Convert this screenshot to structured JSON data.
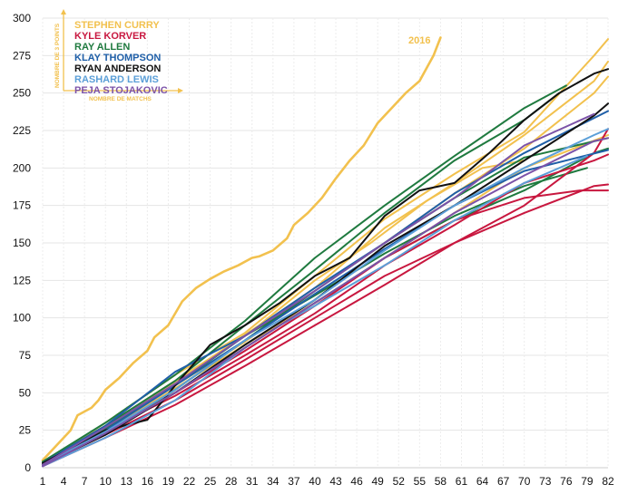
{
  "chart_data": {
    "type": "line",
    "title": "",
    "xlabel": "NOMBRE DE MATCHS",
    "ylabel": "NOMBRE DE 3 POINTS",
    "xlim": [
      1,
      82
    ],
    "ylim": [
      0,
      300
    ],
    "x_ticks": [
      "1",
      "4",
      "7",
      "10",
      "13",
      "16",
      "19",
      "22",
      "25",
      "28",
      "31",
      "34",
      "37",
      "40",
      "43",
      "46",
      "49",
      "52",
      "55",
      "58",
      "61",
      "64",
      "67",
      "70",
      "73",
      "76",
      "79",
      "82"
    ],
    "y_ticks": [
      "0",
      "25",
      "50",
      "75",
      "100",
      "125",
      "150",
      "175",
      "200",
      "225",
      "250",
      "275",
      "300"
    ],
    "legend": {
      "placement": "top-left",
      "entries": [
        {
          "name": "STEPHEN CURRY",
          "color": "#f2c14e"
        },
        {
          "name": "KYLE KORVER",
          "color": "#c8173f"
        },
        {
          "name": "RAY ALLEN",
          "color": "#1f7a3f"
        },
        {
          "name": "KLAY THOMPSON",
          "color": "#1f5fa8"
        },
        {
          "name": "RYAN ANDERSON",
          "color": "#111111"
        },
        {
          "name": "RASHARD LEWIS",
          "color": "#5b9fd8"
        },
        {
          "name": "PEJA STOJAKOVIC",
          "color": "#7b52a8"
        }
      ]
    },
    "annotation": {
      "text": "2016",
      "color": "#f2c14e"
    },
    "series": [
      {
        "name": "STEPHEN CURRY 2016",
        "color": "#f2c14e",
        "width": 2.6,
        "points": [
          [
            1,
            5
          ],
          [
            3,
            15
          ],
          [
            5,
            25
          ],
          [
            6,
            35
          ],
          [
            8,
            40
          ],
          [
            9,
            45
          ],
          [
            10,
            52
          ],
          [
            12,
            60
          ],
          [
            14,
            70
          ],
          [
            16,
            78
          ],
          [
            17,
            87
          ],
          [
            19,
            95
          ],
          [
            21,
            111
          ],
          [
            23,
            120
          ],
          [
            25,
            126
          ],
          [
            27,
            131
          ],
          [
            29,
            135
          ],
          [
            31,
            140
          ],
          [
            32,
            141
          ],
          [
            34,
            145
          ],
          [
            36,
            153
          ],
          [
            37,
            162
          ],
          [
            39,
            170
          ],
          [
            41,
            180
          ],
          [
            43,
            193
          ],
          [
            45,
            205
          ],
          [
            47,
            215
          ],
          [
            49,
            230
          ],
          [
            51,
            240
          ],
          [
            53,
            250
          ],
          [
            55,
            258
          ],
          [
            57,
            275
          ],
          [
            58,
            287
          ]
        ]
      },
      {
        "name": "STEPHEN CURRY",
        "color": "#f2c14e",
        "width": 2,
        "points": [
          [
            1,
            3
          ],
          [
            10,
            30
          ],
          [
            20,
            62
          ],
          [
            30,
            90
          ],
          [
            40,
            128
          ],
          [
            50,
            166
          ],
          [
            60,
            196
          ],
          [
            70,
            224
          ],
          [
            80,
            275
          ],
          [
            82,
            286
          ]
        ]
      },
      {
        "name": "STEPHEN CURRY",
        "color": "#f2c14e",
        "width": 2,
        "points": [
          [
            1,
            4
          ],
          [
            10,
            28
          ],
          [
            20,
            58
          ],
          [
            30,
            88
          ],
          [
            40,
            120
          ],
          [
            50,
            160
          ],
          [
            60,
            190
          ],
          [
            70,
            222
          ],
          [
            80,
            258
          ],
          [
            82,
            271
          ]
        ]
      },
      {
        "name": "STEPHEN CURRY",
        "color": "#f2c14e",
        "width": 2,
        "points": [
          [
            1,
            2
          ],
          [
            10,
            26
          ],
          [
            20,
            55
          ],
          [
            30,
            84
          ],
          [
            40,
            118
          ],
          [
            50,
            150
          ],
          [
            60,
            183
          ],
          [
            70,
            213
          ],
          [
            80,
            250
          ],
          [
            82,
            261
          ]
        ]
      },
      {
        "name": "STEPHEN CURRY",
        "color": "#f2c14e",
        "width": 2,
        "points": [
          [
            1,
            3
          ],
          [
            10,
            25
          ],
          [
            20,
            53
          ],
          [
            30,
            82
          ],
          [
            40,
            110
          ],
          [
            50,
            140
          ],
          [
            60,
            170
          ],
          [
            70,
            200
          ],
          [
            82,
            222
          ]
        ]
      },
      {
        "name": "STEPHEN CURRY",
        "color": "#f2c14e",
        "width": 2,
        "points": [
          [
            1,
            2
          ],
          [
            8,
            20
          ],
          [
            16,
            45
          ],
          [
            24,
            70
          ],
          [
            32,
            95
          ],
          [
            40,
            125
          ],
          [
            48,
            150
          ],
          [
            56,
            178
          ],
          [
            64,
            200
          ],
          [
            70,
            205
          ]
        ]
      },
      {
        "name": "RAY ALLEN",
        "color": "#1f7a3f",
        "width": 2,
        "points": [
          [
            1,
            3
          ],
          [
            10,
            28
          ],
          [
            20,
            58
          ],
          [
            30,
            95
          ],
          [
            40,
            132
          ],
          [
            50,
            170
          ],
          [
            60,
            205
          ],
          [
            70,
            232
          ],
          [
            75,
            250
          ]
        ]
      },
      {
        "name": "RAY ALLEN",
        "color": "#1f7a3f",
        "width": 2,
        "points": [
          [
            1,
            4
          ],
          [
            10,
            30
          ],
          [
            20,
            62
          ],
          [
            30,
            98
          ],
          [
            40,
            140
          ],
          [
            50,
            175
          ],
          [
            60,
            208
          ],
          [
            70,
            240
          ],
          [
            76,
            255
          ]
        ]
      },
      {
        "name": "RAY ALLEN",
        "color": "#1f7a3f",
        "width": 2,
        "points": [
          [
            1,
            2
          ],
          [
            10,
            22
          ],
          [
            20,
            52
          ],
          [
            30,
            85
          ],
          [
            40,
            118
          ],
          [
            50,
            150
          ],
          [
            60,
            180
          ],
          [
            70,
            207
          ],
          [
            82,
            220
          ]
        ]
      },
      {
        "name": "RAY ALLEN",
        "color": "#1f7a3f",
        "width": 2,
        "points": [
          [
            1,
            3
          ],
          [
            10,
            26
          ],
          [
            20,
            55
          ],
          [
            30,
            88
          ],
          [
            40,
            115
          ],
          [
            50,
            143
          ],
          [
            60,
            168
          ],
          [
            70,
            188
          ],
          [
            79,
            200
          ]
        ]
      },
      {
        "name": "RAY ALLEN",
        "color": "#1f7a3f",
        "width": 2,
        "points": [
          [
            1,
            2
          ],
          [
            10,
            24
          ],
          [
            20,
            50
          ],
          [
            30,
            80
          ],
          [
            40,
            110
          ],
          [
            50,
            140
          ],
          [
            60,
            165
          ],
          [
            70,
            185
          ],
          [
            80,
            210
          ],
          [
            82,
            213
          ]
        ]
      },
      {
        "name": "KYLE KORVER",
        "color": "#c8173f",
        "width": 2,
        "points": [
          [
            1,
            2
          ],
          [
            10,
            22
          ],
          [
            20,
            45
          ],
          [
            30,
            72
          ],
          [
            40,
            100
          ],
          [
            50,
            128
          ],
          [
            60,
            150
          ],
          [
            70,
            170
          ],
          [
            80,
            188
          ],
          [
            82,
            189
          ]
        ]
      },
      {
        "name": "KYLE KORVER",
        "color": "#c8173f",
        "width": 2,
        "points": [
          [
            1,
            1
          ],
          [
            10,
            20
          ],
          [
            20,
            42
          ],
          [
            30,
            68
          ],
          [
            40,
            95
          ],
          [
            50,
            122
          ],
          [
            60,
            150
          ],
          [
            70,
            175
          ],
          [
            80,
            210
          ],
          [
            82,
            226
          ]
        ]
      },
      {
        "name": "KYLE KORVER",
        "color": "#c8173f",
        "width": 2,
        "points": [
          [
            1,
            2
          ],
          [
            10,
            25
          ],
          [
            20,
            48
          ],
          [
            30,
            75
          ],
          [
            40,
            103
          ],
          [
            50,
            135
          ],
          [
            60,
            162
          ],
          [
            70,
            190
          ],
          [
            80,
            205
          ],
          [
            82,
            209
          ]
        ]
      },
      {
        "name": "KYLE KORVER",
        "color": "#c8173f",
        "width": 2,
        "points": [
          [
            1,
            1
          ],
          [
            10,
            23
          ],
          [
            20,
            50
          ],
          [
            30,
            78
          ],
          [
            40,
            108
          ],
          [
            50,
            140
          ],
          [
            60,
            165
          ],
          [
            70,
            180
          ],
          [
            78,
            185
          ],
          [
            82,
            185
          ]
        ]
      },
      {
        "name": "KLAY THOMPSON",
        "color": "#1f5fa8",
        "width": 2,
        "points": [
          [
            1,
            3
          ],
          [
            10,
            28
          ],
          [
            20,
            64
          ],
          [
            30,
            88
          ],
          [
            40,
            120
          ],
          [
            50,
            150
          ],
          [
            60,
            183
          ],
          [
            70,
            210
          ],
          [
            82,
            238
          ]
        ]
      },
      {
        "name": "KLAY THOMPSON",
        "color": "#1f5fa8",
        "width": 2,
        "points": [
          [
            1,
            2
          ],
          [
            10,
            25
          ],
          [
            20,
            55
          ],
          [
            30,
            85
          ],
          [
            40,
            116
          ],
          [
            50,
            146
          ],
          [
            60,
            175
          ],
          [
            70,
            198
          ],
          [
            82,
            212
          ]
        ]
      },
      {
        "name": "RYAN ANDERSON",
        "color": "#111111",
        "width": 2,
        "points": [
          [
            1,
            3
          ],
          [
            10,
            25
          ],
          [
            16,
            32
          ],
          [
            20,
            55
          ],
          [
            25,
            82
          ],
          [
            30,
            95
          ],
          [
            35,
            110
          ],
          [
            40,
            128
          ],
          [
            45,
            140
          ],
          [
            50,
            168
          ],
          [
            55,
            185
          ],
          [
            60,
            190
          ],
          [
            65,
            210
          ],
          [
            70,
            232
          ],
          [
            75,
            250
          ],
          [
            80,
            263
          ],
          [
            82,
            266
          ]
        ]
      },
      {
        "name": "RYAN ANDERSON",
        "color": "#111111",
        "width": 2,
        "points": [
          [
            1,
            2
          ],
          [
            10,
            22
          ],
          [
            20,
            50
          ],
          [
            30,
            82
          ],
          [
            40,
            112
          ],
          [
            50,
            148
          ],
          [
            60,
            175
          ],
          [
            70,
            205
          ],
          [
            80,
            235
          ],
          [
            82,
            243
          ]
        ]
      },
      {
        "name": "RASHARD LEWIS",
        "color": "#5b9fd8",
        "width": 2,
        "points": [
          [
            1,
            2
          ],
          [
            10,
            24
          ],
          [
            20,
            52
          ],
          [
            30,
            85
          ],
          [
            40,
            112
          ],
          [
            50,
            145
          ],
          [
            60,
            175
          ],
          [
            70,
            200
          ],
          [
            80,
            222
          ],
          [
            82,
            226
          ]
        ]
      },
      {
        "name": "RASHARD LEWIS",
        "color": "#5b9fd8",
        "width": 2,
        "points": [
          [
            1,
            1
          ],
          [
            10,
            20
          ],
          [
            20,
            45
          ],
          [
            30,
            80
          ],
          [
            35,
            95
          ],
          [
            40,
            108
          ],
          [
            50,
            135
          ],
          [
            60,
            165
          ],
          [
            70,
            190
          ],
          [
            79,
            208
          ]
        ]
      },
      {
        "name": "PEJA STOJAKOVIC",
        "color": "#7b52a8",
        "width": 2,
        "points": [
          [
            1,
            2
          ],
          [
            10,
            27
          ],
          [
            20,
            56
          ],
          [
            30,
            88
          ],
          [
            40,
            118
          ],
          [
            50,
            150
          ],
          [
            60,
            180
          ],
          [
            70,
            215
          ],
          [
            80,
            236
          ]
        ]
      },
      {
        "name": "PEJA STOJAKOVIC",
        "color": "#7b52a8",
        "width": 2,
        "points": [
          [
            1,
            1
          ],
          [
            10,
            23
          ],
          [
            20,
            50
          ],
          [
            30,
            80
          ],
          [
            40,
            110
          ],
          [
            50,
            140
          ],
          [
            60,
            170
          ],
          [
            70,
            195
          ],
          [
            80,
            218
          ],
          [
            82,
            220
          ]
        ]
      }
    ]
  }
}
